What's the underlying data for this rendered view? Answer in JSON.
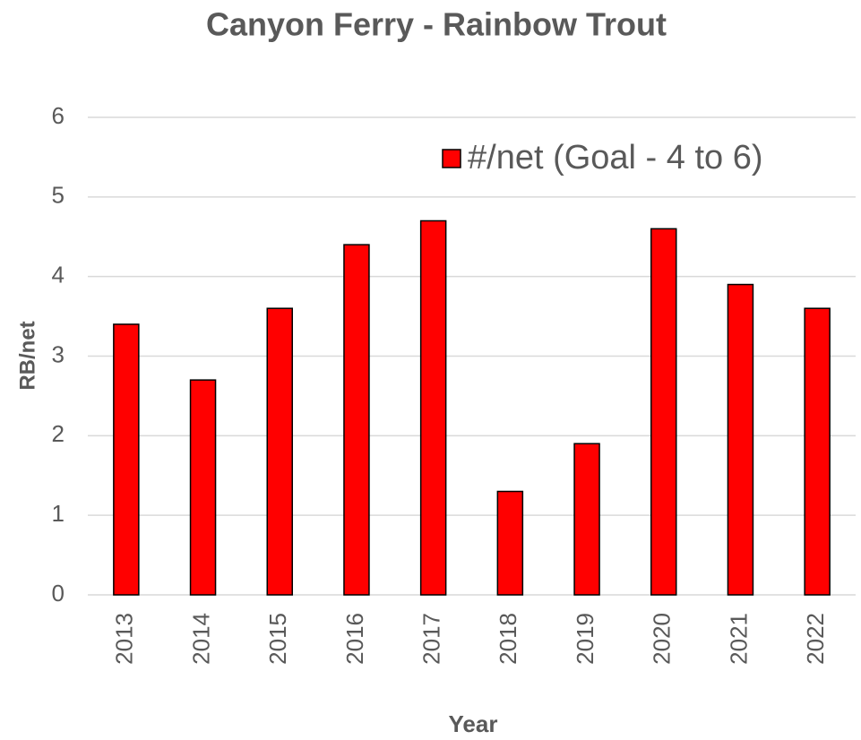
{
  "chart_data": {
    "type": "bar",
    "title": "Canyon Ferry -  Rainbow Trout",
    "x_label": "Year",
    "y_label": "RB/net",
    "categories": [
      "2013",
      "2014",
      "2015",
      "2016",
      "2017",
      "2018",
      "2019",
      "2020",
      "2021",
      "2022"
    ],
    "series": [
      {
        "name": "#/net (Goal - 4 to 6)",
        "color": "#ff0000",
        "values": [
          3.4,
          2.7,
          3.6,
          4.4,
          4.7,
          1.3,
          1.9,
          4.6,
          3.9,
          3.6
        ]
      }
    ],
    "ylim": [
      0,
      6
    ],
    "yticks": [
      0,
      1,
      2,
      3,
      4,
      5,
      6
    ],
    "grid": true,
    "legend": "top-right"
  }
}
